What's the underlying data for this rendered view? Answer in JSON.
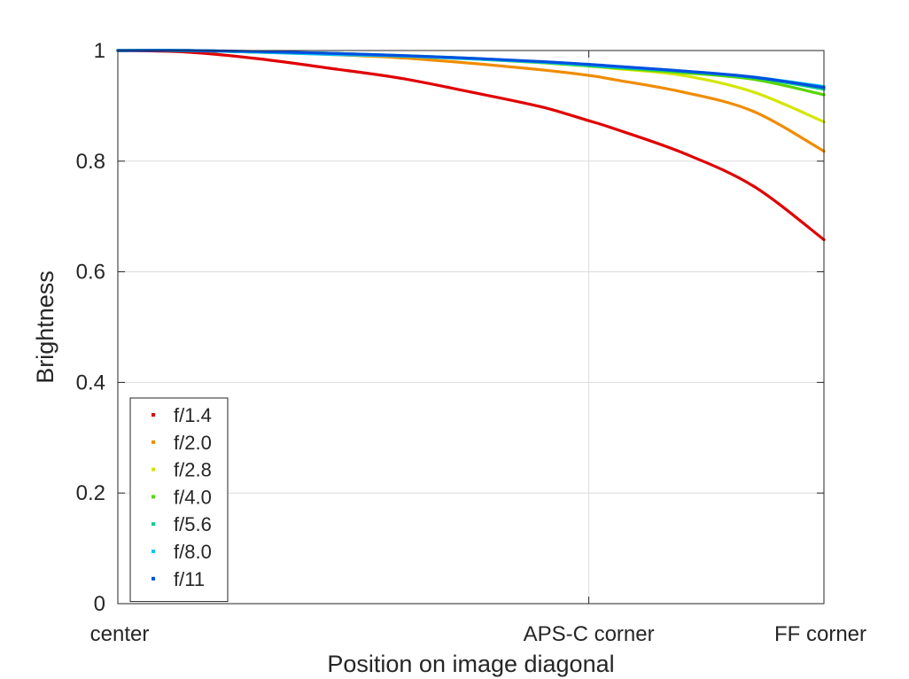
{
  "chart_data": {
    "type": "scatter",
    "title": "",
    "xlabel": "Position on image diagonal",
    "ylabel": "Brightness",
    "xlim": [
      0,
      1
    ],
    "ylim": [
      0,
      1
    ],
    "x_ticks": [
      {
        "value": 0,
        "label": "center"
      },
      {
        "value": 0.667,
        "label": "APS-C corner"
      },
      {
        "value": 1,
        "label": "FF corner"
      }
    ],
    "y_ticks": [
      {
        "value": 0,
        "label": "0"
      },
      {
        "value": 0.2,
        "label": "0.2"
      },
      {
        "value": 0.4,
        "label": "0.4"
      },
      {
        "value": 0.6,
        "label": "0.6"
      },
      {
        "value": 0.8,
        "label": "0.8"
      },
      {
        "value": 1,
        "label": "1"
      }
    ],
    "grid": true,
    "legend_position": "bottom-left",
    "x": [
      0,
      0.1,
      0.2,
      0.3,
      0.4,
      0.5,
      0.6,
      0.667,
      0.7,
      0.8,
      0.9,
      1.0
    ],
    "series": [
      {
        "name": "f/1.4",
        "color": "#e00000",
        "values": [
          1.0,
          0.997,
          0.985,
          0.968,
          0.95,
          0.925,
          0.898,
          0.873,
          0.86,
          0.815,
          0.755,
          0.658
        ]
      },
      {
        "name": "f/2.0",
        "color": "#f08c00",
        "values": [
          1.0,
          1.0,
          0.997,
          0.993,
          0.987,
          0.977,
          0.965,
          0.955,
          0.948,
          0.925,
          0.89,
          0.818
        ]
      },
      {
        "name": "f/2.8",
        "color": "#d4e600",
        "values": [
          1.0,
          1.0,
          0.997,
          0.995,
          0.99,
          0.985,
          0.978,
          0.972,
          0.968,
          0.955,
          0.925,
          0.871
        ]
      },
      {
        "name": "f/4.0",
        "color": "#5ad400",
        "values": [
          1.0,
          1.0,
          0.997,
          0.995,
          0.99,
          0.985,
          0.978,
          0.972,
          0.969,
          0.96,
          0.948,
          0.92
        ]
      },
      {
        "name": "f/5.6",
        "color": "#00d08a",
        "values": [
          1.0,
          1.0,
          0.997,
          0.995,
          0.991,
          0.986,
          0.979,
          0.973,
          0.97,
          0.962,
          0.951,
          0.93
        ]
      },
      {
        "name": "f/8.0",
        "color": "#00c8f0",
        "values": [
          1.0,
          1.0,
          0.997,
          0.993,
          0.99,
          0.985,
          0.979,
          0.974,
          0.971,
          0.963,
          0.952,
          0.935
        ]
      },
      {
        "name": "f/11",
        "color": "#0050e0",
        "values": [
          1.0,
          1.0,
          0.998,
          0.995,
          0.991,
          0.986,
          0.98,
          0.975,
          0.972,
          0.963,
          0.952,
          0.933
        ]
      }
    ]
  }
}
